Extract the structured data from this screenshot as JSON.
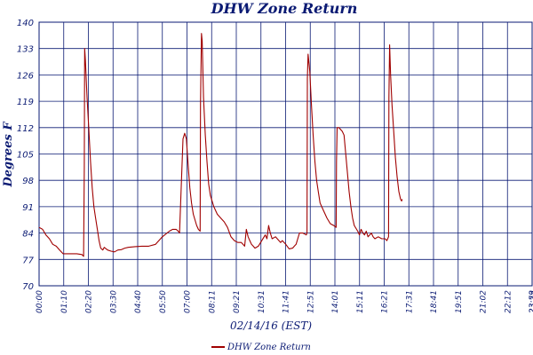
{
  "colors": {
    "axis": "#0a1a73",
    "grid": "#0a1a73",
    "series": "#a00000"
  },
  "chart_data": {
    "type": "line",
    "title": "DHW Zone Return",
    "xlabel": "02/14/16 (EST)",
    "ylabel": "Degrees F",
    "ylim": [
      70,
      140
    ],
    "y_ticks": [
      "70",
      "77",
      "84",
      "91",
      "98",
      "105",
      "112",
      "119",
      "126",
      "133",
      "140"
    ],
    "x_ticks": [
      "00:00",
      "01:10",
      "02:20",
      "03:30",
      "04:40",
      "05:50",
      "07:00",
      "08:11",
      "09:21",
      "10:31",
      "11:41",
      "12:51",
      "14:01",
      "15:11",
      "16:21",
      "17:31",
      "18:41",
      "19:51",
      "21:02",
      "22:12",
      "23:23",
      "23:59"
    ],
    "x_range_minutes": [
      0,
      1439
    ],
    "grid": true,
    "legend_position": "bottom",
    "series": [
      {
        "name": "DHW Zone Return",
        "points": [
          [
            0,
            85.5
          ],
          [
            10,
            85
          ],
          [
            20,
            83.5
          ],
          [
            30,
            82.5
          ],
          [
            40,
            81
          ],
          [
            50,
            80.5
          ],
          [
            60,
            79.5
          ],
          [
            70,
            78.5
          ],
          [
            90,
            78.5
          ],
          [
            110,
            78.5
          ],
          [
            125,
            78.3
          ],
          [
            130,
            77.8
          ],
          [
            132,
            101.5
          ],
          [
            133,
            133
          ],
          [
            135,
            130
          ],
          [
            140,
            120
          ],
          [
            145,
            112
          ],
          [
            150,
            103
          ],
          [
            155,
            96
          ],
          [
            160,
            91
          ],
          [
            165,
            88
          ],
          [
            170,
            85
          ],
          [
            175,
            82
          ],
          [
            180,
            80
          ],
          [
            186,
            79.5
          ],
          [
            190,
            80.2
          ],
          [
            200,
            79.5
          ],
          [
            210,
            79.2
          ],
          [
            220,
            79
          ],
          [
            230,
            79.5
          ],
          [
            240,
            79.6
          ],
          [
            250,
            80
          ],
          [
            260,
            80.2
          ],
          [
            280,
            80.4
          ],
          [
            300,
            80.5
          ],
          [
            320,
            80.5
          ],
          [
            340,
            81
          ],
          [
            360,
            83
          ],
          [
            380,
            84.5
          ],
          [
            390,
            85
          ],
          [
            400,
            85
          ],
          [
            408,
            84.3
          ],
          [
            410,
            84
          ],
          [
            420,
            109
          ],
          [
            425,
            110.5
          ],
          [
            430,
            109
          ],
          [
            435,
            102
          ],
          [
            440,
            96
          ],
          [
            445,
            92
          ],
          [
            450,
            89
          ],
          [
            460,
            86
          ],
          [
            465,
            85
          ],
          [
            470,
            84.5
          ],
          [
            471,
            118
          ],
          [
            474,
            137
          ],
          [
            476,
            135
          ],
          [
            480,
            120
          ],
          [
            485,
            110
          ],
          [
            490,
            103
          ],
          [
            495,
            97
          ],
          [
            500,
            94
          ],
          [
            510,
            91
          ],
          [
            520,
            89
          ],
          [
            530,
            88
          ],
          [
            540,
            87
          ],
          [
            550,
            85.5
          ],
          [
            560,
            83
          ],
          [
            570,
            82
          ],
          [
            580,
            81.5
          ],
          [
            590,
            81.5
          ],
          [
            595,
            81
          ],
          [
            600,
            80.5
          ],
          [
            605,
            85
          ],
          [
            610,
            83
          ],
          [
            615,
            82
          ],
          [
            620,
            81
          ],
          [
            625,
            80.5
          ],
          [
            630,
            80
          ],
          [
            640,
            80.5
          ],
          [
            650,
            82
          ],
          [
            660,
            83.5
          ],
          [
            665,
            82.5
          ],
          [
            670,
            86
          ],
          [
            675,
            84
          ],
          [
            680,
            82.5
          ],
          [
            690,
            83
          ],
          [
            700,
            82
          ],
          [
            705,
            81.5
          ],
          [
            710,
            82
          ],
          [
            715,
            81.5
          ],
          [
            720,
            81
          ],
          [
            730,
            79.8
          ],
          [
            740,
            80
          ],
          [
            745,
            80.5
          ],
          [
            750,
            81
          ],
          [
            755,
            82.5
          ],
          [
            760,
            84
          ],
          [
            770,
            84
          ],
          [
            780,
            83.5
          ],
          [
            782,
            84
          ],
          [
            783,
            125
          ],
          [
            785,
            131.5
          ],
          [
            790,
            127
          ],
          [
            795,
            118
          ],
          [
            800,
            110
          ],
          [
            805,
            103
          ],
          [
            810,
            98
          ],
          [
            815,
            95
          ],
          [
            820,
            92
          ],
          [
            830,
            90
          ],
          [
            840,
            88
          ],
          [
            850,
            86.5
          ],
          [
            860,
            86
          ],
          [
            867,
            85.5
          ],
          [
            868,
            103
          ],
          [
            870,
            112
          ],
          [
            875,
            112
          ],
          [
            880,
            111.5
          ],
          [
            885,
            111
          ],
          [
            890,
            110
          ],
          [
            895,
            105
          ],
          [
            900,
            100
          ],
          [
            905,
            95
          ],
          [
            910,
            91
          ],
          [
            915,
            88
          ],
          [
            920,
            86
          ],
          [
            930,
            84.5
          ],
          [
            935,
            83.5
          ],
          [
            940,
            85
          ],
          [
            945,
            84
          ],
          [
            950,
            83.5
          ],
          [
            955,
            84.5
          ],
          [
            960,
            83
          ],
          [
            970,
            84
          ],
          [
            975,
            83
          ],
          [
            980,
            82.5
          ],
          [
            990,
            83
          ],
          [
            1000,
            82.5
          ],
          [
            1010,
            82.5
          ],
          [
            1015,
            82
          ],
          [
            1020,
            83
          ],
          [
            1021,
            120
          ],
          [
            1023,
            134
          ],
          [
            1026,
            126
          ],
          [
            1030,
            118
          ],
          [
            1035,
            111
          ],
          [
            1040,
            104
          ],
          [
            1045,
            99
          ],
          [
            1050,
            95
          ],
          [
            1055,
            93
          ],
          [
            1058,
            92.5
          ],
          [
            1060,
            93
          ]
        ]
      }
    ]
  }
}
